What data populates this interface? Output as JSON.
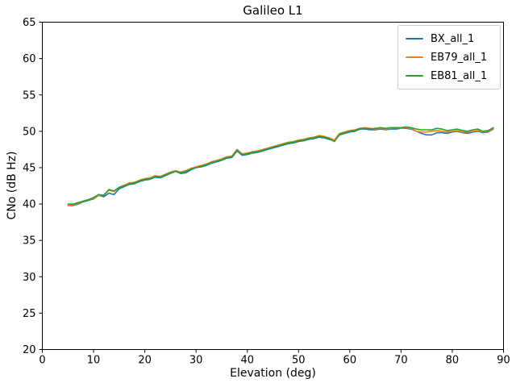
{
  "chart_data": {
    "type": "line",
    "title": "Galileo L1",
    "xlabel": "Elevation (deg)",
    "ylabel": "CNo (dB Hz)",
    "xlim": [
      0,
      90
    ],
    "ylim": [
      20,
      65
    ],
    "xticks": [
      0,
      10,
      20,
      30,
      40,
      50,
      60,
      70,
      80,
      90
    ],
    "yticks": [
      20,
      25,
      30,
      35,
      40,
      45,
      50,
      55,
      60,
      65
    ],
    "grid": false,
    "legend_position": "upper right",
    "line_width": 1.6,
    "axis_color": "#000000",
    "x": [
      5,
      6,
      7,
      8,
      9,
      10,
      11,
      12,
      13,
      14,
      15,
      16,
      17,
      18,
      19,
      20,
      21,
      22,
      23,
      24,
      25,
      26,
      27,
      28,
      29,
      30,
      31,
      32,
      33,
      34,
      35,
      36,
      37,
      38,
      39,
      40,
      41,
      42,
      43,
      44,
      45,
      46,
      47,
      48,
      49,
      50,
      51,
      52,
      53,
      54,
      55,
      56,
      57,
      58,
      59,
      60,
      61,
      62,
      63,
      64,
      65,
      66,
      67,
      68,
      69,
      70,
      71,
      72,
      73,
      74,
      75,
      76,
      77,
      78,
      79,
      80,
      81,
      82,
      83,
      84,
      85,
      86,
      87,
      88
    ],
    "series": [
      {
        "name": "BX_all_1",
        "color": "#1f77b4",
        "values": [
          39.8,
          39.8,
          40.0,
          40.3,
          40.5,
          40.7,
          41.2,
          41.0,
          41.5,
          41.3,
          42.1,
          42.4,
          42.7,
          42.8,
          43.1,
          43.3,
          43.4,
          43.7,
          43.6,
          43.9,
          44.2,
          44.5,
          44.2,
          44.3,
          44.7,
          45.0,
          45.1,
          45.3,
          45.6,
          45.8,
          46.0,
          46.3,
          46.4,
          47.3,
          46.7,
          46.8,
          47.0,
          47.1,
          47.3,
          47.5,
          47.7,
          47.9,
          48.1,
          48.3,
          48.4,
          48.6,
          48.7,
          48.9,
          49.0,
          49.2,
          49.1,
          48.9,
          48.7,
          49.5,
          49.7,
          49.9,
          50.0,
          50.3,
          50.3,
          50.2,
          50.2,
          50.3,
          50.2,
          50.3,
          50.3,
          50.4,
          50.4,
          50.3,
          50.0,
          49.7,
          49.5,
          49.5,
          49.8,
          49.8,
          49.7,
          49.9,
          50.0,
          49.8,
          49.7,
          49.9,
          50.0,
          49.8,
          49.9,
          50.3
        ]
      },
      {
        "name": "EB79_all_1",
        "color": "#ff7f0e",
        "values": [
          39.8,
          39.9,
          40.1,
          40.4,
          40.6,
          40.8,
          41.2,
          41.2,
          41.9,
          41.7,
          42.3,
          42.6,
          42.9,
          43.0,
          43.3,
          43.5,
          43.6,
          43.9,
          43.8,
          44.1,
          44.4,
          44.6,
          44.4,
          44.6,
          44.9,
          45.1,
          45.3,
          45.5,
          45.8,
          46.0,
          46.2,
          46.5,
          46.6,
          47.5,
          46.9,
          47.0,
          47.2,
          47.3,
          47.5,
          47.7,
          47.9,
          48.1,
          48.3,
          48.5,
          48.6,
          48.8,
          48.9,
          49.1,
          49.2,
          49.4,
          49.3,
          49.1,
          48.8,
          49.7,
          49.9,
          50.1,
          50.2,
          50.4,
          50.5,
          50.4,
          50.3,
          50.4,
          50.3,
          50.4,
          50.5,
          50.4,
          50.5,
          50.4,
          50.0,
          49.9,
          49.9,
          50.0,
          50.1,
          50.0,
          49.9,
          50.0,
          50.1,
          49.9,
          49.9,
          50.0,
          50.1,
          49.9,
          50.0,
          50.4
        ]
      },
      {
        "name": "EB81_all_1",
        "color": "#2ca02c",
        "values": [
          40.0,
          40.0,
          40.2,
          40.4,
          40.6,
          40.9,
          41.3,
          41.2,
          42.0,
          41.8,
          42.3,
          42.5,
          42.8,
          42.9,
          43.2,
          43.4,
          43.5,
          43.8,
          43.7,
          44.0,
          44.3,
          44.5,
          44.3,
          44.5,
          44.8,
          45.0,
          45.2,
          45.4,
          45.7,
          45.9,
          46.1,
          46.4,
          46.5,
          47.4,
          46.8,
          46.9,
          47.1,
          47.2,
          47.4,
          47.6,
          47.8,
          48.0,
          48.2,
          48.4,
          48.5,
          48.7,
          48.8,
          49.0,
          49.1,
          49.3,
          49.2,
          49.0,
          48.6,
          49.6,
          49.8,
          50.0,
          50.1,
          50.4,
          50.4,
          50.3,
          50.4,
          50.5,
          50.4,
          50.5,
          50.5,
          50.5,
          50.6,
          50.5,
          50.3,
          50.2,
          50.2,
          50.2,
          50.4,
          50.3,
          50.1,
          50.2,
          50.3,
          50.1,
          50.0,
          50.2,
          50.3,
          50.0,
          50.1,
          50.5
        ]
      }
    ]
  }
}
